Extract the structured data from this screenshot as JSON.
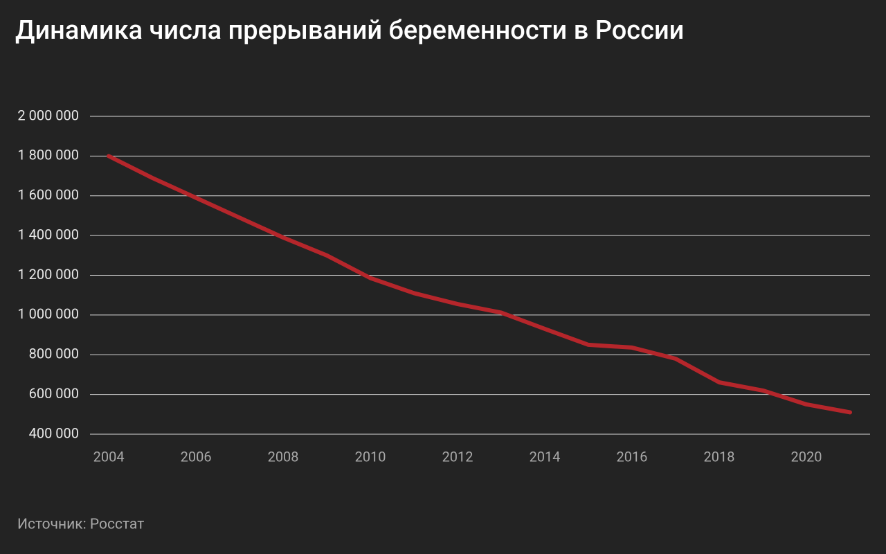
{
  "chart_data": {
    "type": "line",
    "title": "Динамика числа прерываний беременности в России",
    "source": "Источник: Росстат",
    "x": [
      2004,
      2005,
      2006,
      2007,
      2008,
      2009,
      2010,
      2011,
      2012,
      2013,
      2014,
      2015,
      2016,
      2017,
      2018,
      2019,
      2020,
      2021
    ],
    "series": [
      {
        "color": "#b5262b",
        "values": [
          1800000,
          1690000,
          1590000,
          1490000,
          1390000,
          1300000,
          1186000,
          1110000,
          1055000,
          1012000,
          930000,
          850000,
          836000,
          780000,
          661000,
          620000,
          550000,
          510000
        ]
      }
    ],
    "xlim": [
      2003.57,
      2021.46
    ],
    "xticks": [
      2004,
      2006,
      2008,
      2010,
      2012,
      2014,
      2016,
      2018,
      2020
    ],
    "ylim": [
      400000,
      2000000
    ],
    "yticks": [
      {
        "value": 400000,
        "label": "400 000"
      },
      {
        "value": 600000,
        "label": "600 000"
      },
      {
        "value": 800000,
        "label": "800 000"
      },
      {
        "value": 1000000,
        "label": "1 000 000"
      },
      {
        "value": 1200000,
        "label": "1 200 000"
      },
      {
        "value": 1400000,
        "label": "1 400 000"
      },
      {
        "value": 1600000,
        "label": "1 600 000"
      },
      {
        "value": 1800000,
        "label": "1 800 000"
      },
      {
        "value": 2000000,
        "label": "2 000 000"
      }
    ],
    "grid": true
  }
}
